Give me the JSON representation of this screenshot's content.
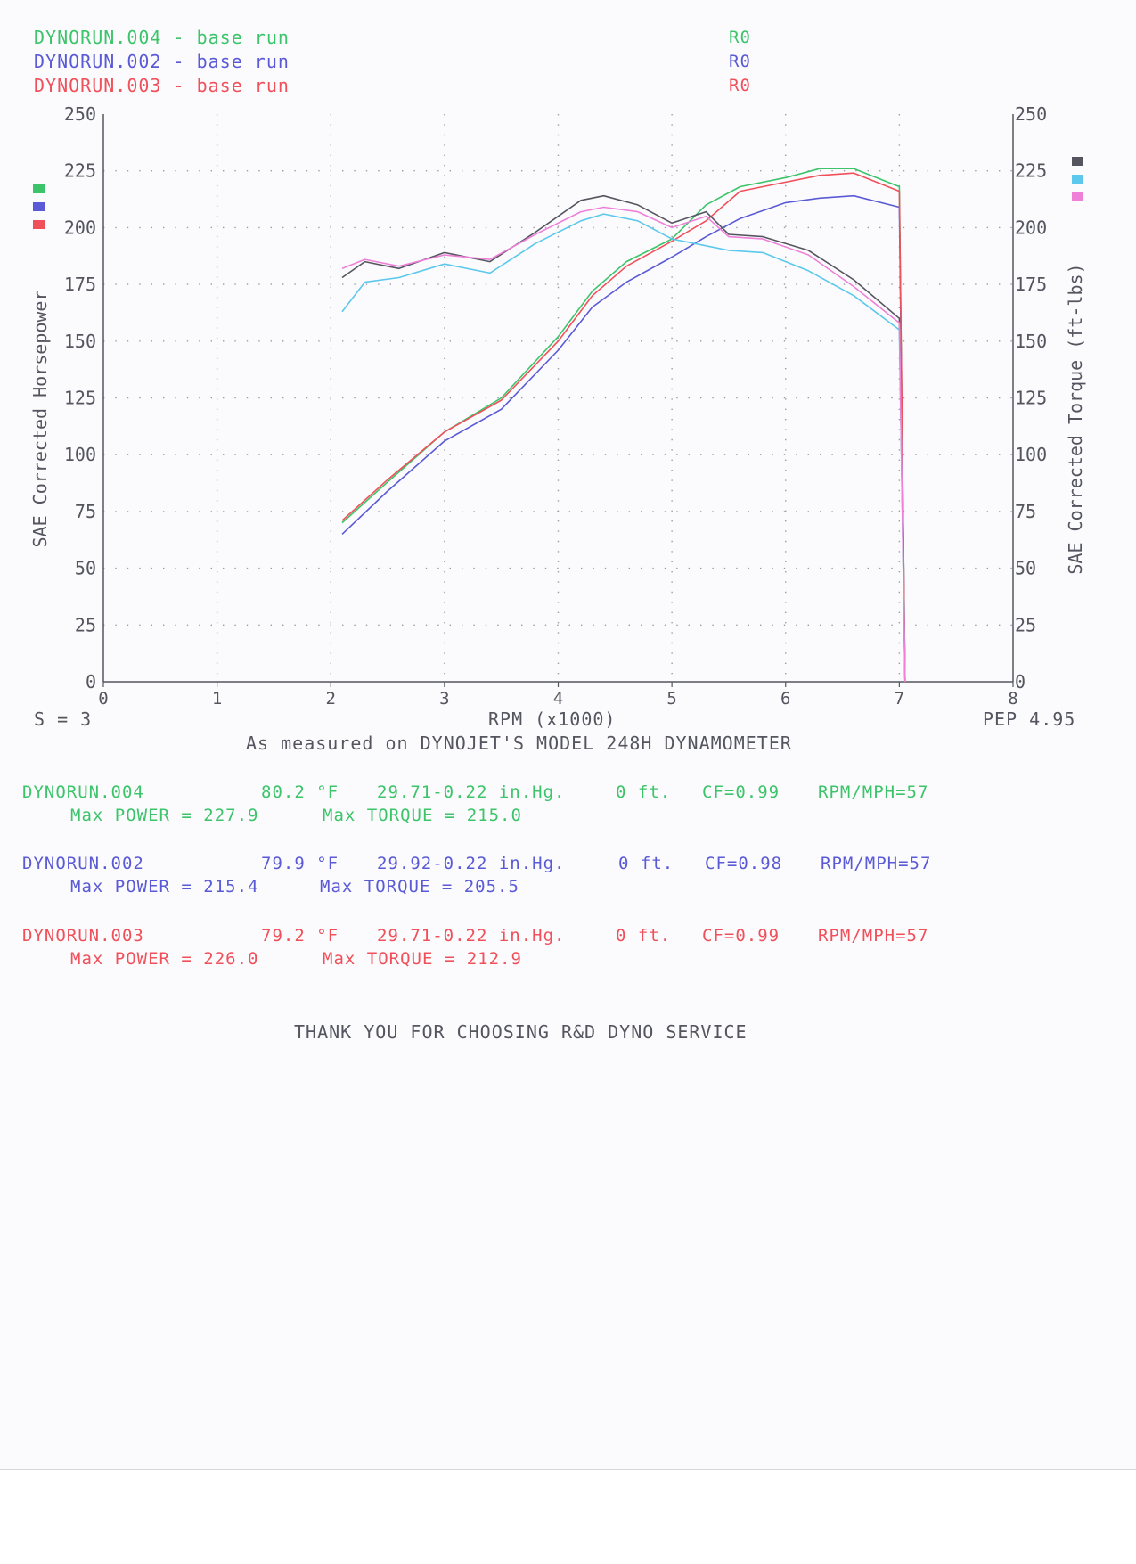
{
  "legend_runs": [
    {
      "label": "DYNORUN.004 - base run",
      "code": "R0",
      "color": "#3cc46a"
    },
    {
      "label": "DYNORUN.002 - base run",
      "code": "R0",
      "color": "#5a5ad6"
    },
    {
      "label": "DYNORUN.003 - base run",
      "code": "R0",
      "color": "#f0505a"
    }
  ],
  "bottom_left": "S = 3",
  "bottom_right": "PEP 4.95",
  "measured_note": "As measured on DYNOJET'S MODEL 248H DYNAMOMETER",
  "runs_detail": [
    {
      "name": "DYNORUN.004",
      "temp": "80.2 °F",
      "baro": "29.71-0.22 in.Hg.",
      "alt": "0 ft.",
      "cf": "CF=0.99",
      "rpm_mph": "RPM/MPH=57",
      "max_power": "Max POWER = 227.9",
      "max_torque": "Max TORQUE = 215.0"
    },
    {
      "name": "DYNORUN.002",
      "temp": "79.9 °F",
      "baro": "29.92-0.22 in.Hg.",
      "alt": "0 ft.",
      "cf": "CF=0.98",
      "rpm_mph": "RPM/MPH=57",
      "max_power": "Max POWER = 215.4",
      "max_torque": "Max TORQUE = 205.5"
    },
    {
      "name": "DYNORUN.003",
      "temp": "79.2 °F",
      "baro": "29.71-0.22 in.Hg.",
      "alt": "0 ft.",
      "cf": "CF=0.99",
      "rpm_mph": "RPM/MPH=57",
      "max_power": "Max POWER = 226.0",
      "max_torque": "Max TORQUE = 212.9"
    }
  ],
  "footer": "THANK YOU FOR CHOOSING R&D DYNO SERVICE",
  "chart_data": {
    "type": "line",
    "xlabel": "RPM (x1000)",
    "ylabel": "SAE Corrected Horsepower",
    "y2label": "SAE Corrected Torque (ft-lbs)",
    "xlim": [
      0,
      8
    ],
    "ylim": [
      0,
      250
    ],
    "y2lim": [
      0,
      250
    ],
    "x_ticks": [
      "0",
      "1",
      "2",
      "3",
      "4",
      "5",
      "6",
      "7",
      "8"
    ],
    "y_ticks": [
      "0",
      "25",
      "50",
      "75",
      "100",
      "125",
      "150",
      "175",
      "200",
      "225",
      "250"
    ],
    "y2_ticks": [
      "0",
      "25",
      "50",
      "75",
      "100",
      "125",
      "150",
      "175",
      "200",
      "225",
      "250"
    ],
    "grid": true,
    "hp_swatches": [
      "#3cc46a",
      "#5a5ad6",
      "#f0505a"
    ],
    "tq_swatches": [
      "#555560",
      "#5cc8ec",
      "#ee80d8"
    ],
    "series": [
      {
        "kind": "horsepower",
        "color": "#3cc46a",
        "x": [
          2.1,
          2.5,
          3.0,
          3.5,
          4.0,
          4.3,
          4.6,
          5.0,
          5.3,
          5.6,
          6.0,
          6.3,
          6.6,
          7.0,
          7.05
        ],
        "y": [
          70,
          88,
          110,
          125,
          152,
          172,
          185,
          195,
          210,
          218,
          222,
          226,
          226,
          218,
          0
        ]
      },
      {
        "kind": "horsepower",
        "color": "#5a5ad6",
        "x": [
          2.1,
          2.5,
          3.0,
          3.5,
          4.0,
          4.3,
          4.6,
          5.0,
          5.3,
          5.6,
          6.0,
          6.3,
          6.6,
          7.0,
          7.05
        ],
        "y": [
          65,
          84,
          106,
          120,
          146,
          165,
          176,
          187,
          196,
          204,
          211,
          213,
          214,
          209,
          0
        ]
      },
      {
        "kind": "horsepower",
        "color": "#f0505a",
        "x": [
          2.1,
          2.5,
          3.0,
          3.5,
          4.0,
          4.3,
          4.6,
          5.0,
          5.3,
          5.6,
          6.0,
          6.3,
          6.6,
          7.0,
          7.05
        ],
        "y": [
          71,
          89,
          110,
          124,
          150,
          170,
          183,
          194,
          203,
          216,
          220,
          223,
          224,
          216,
          0
        ]
      },
      {
        "kind": "torque",
        "color": "#555560",
        "x": [
          2.1,
          2.3,
          2.6,
          3.0,
          3.4,
          3.8,
          4.2,
          4.4,
          4.7,
          5.0,
          5.3,
          5.5,
          5.8,
          6.2,
          6.6,
          7.0,
          7.05
        ],
        "y": [
          178,
          185,
          182,
          189,
          185,
          198,
          212,
          214,
          210,
          202,
          207,
          197,
          196,
          190,
          177,
          160,
          0
        ]
      },
      {
        "kind": "torque",
        "color": "#5cc8ec",
        "x": [
          2.1,
          2.3,
          2.6,
          3.0,
          3.4,
          3.8,
          4.2,
          4.4,
          4.7,
          5.0,
          5.3,
          5.5,
          5.8,
          6.2,
          6.6,
          7.0,
          7.05
        ],
        "y": [
          163,
          176,
          178,
          184,
          180,
          193,
          203,
          206,
          203,
          195,
          192,
          190,
          189,
          181,
          170,
          155,
          0
        ]
      },
      {
        "kind": "torque",
        "color": "#ee80d8",
        "x": [
          2.1,
          2.3,
          2.6,
          3.0,
          3.4,
          3.8,
          4.2,
          4.4,
          4.7,
          5.0,
          5.3,
          5.5,
          5.8,
          6.2,
          6.6,
          7.0,
          7.05
        ],
        "y": [
          182,
          186,
          183,
          188,
          186,
          197,
          207,
          209,
          207,
          200,
          205,
          196,
          195,
          188,
          174,
          158,
          0
        ]
      }
    ]
  }
}
